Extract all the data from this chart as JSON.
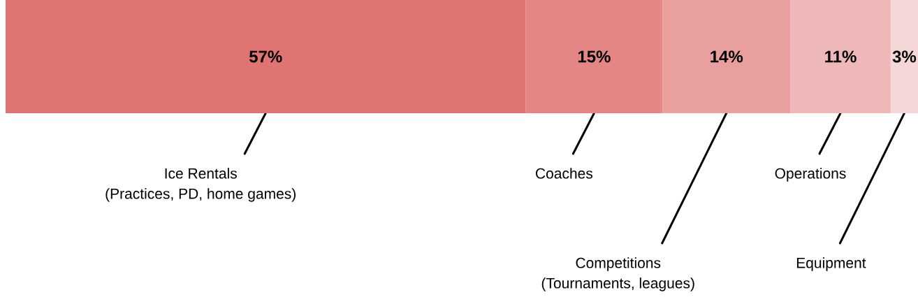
{
  "chart_data": {
    "type": "bar",
    "orientation": "horizontal",
    "stacked": true,
    "categories": [
      null
    ],
    "series": [
      {
        "name": "Ice Rentals (Practices, PD, home games)",
        "color": "#e07472",
        "values": [
          57
        ],
        "value_labels": [
          "57%"
        ]
      },
      {
        "name": "Coaches",
        "color": "#e48685",
        "values": [
          15
        ],
        "value_labels": [
          "15%"
        ]
      },
      {
        "name": "Competitions (Tournaments, leagues)",
        "color": "#e99f9e",
        "values": [
          14
        ],
        "value_labels": [
          "14%"
        ]
      },
      {
        "name": "Operations",
        "color": "#efb8b8",
        "values": [
          11
        ],
        "value_labels": [
          "11%"
        ]
      },
      {
        "name": "Equipment",
        "color": "#f6d7d7",
        "values": [
          3
        ],
        "value_labels": [
          "3%"
        ]
      }
    ]
  }
}
